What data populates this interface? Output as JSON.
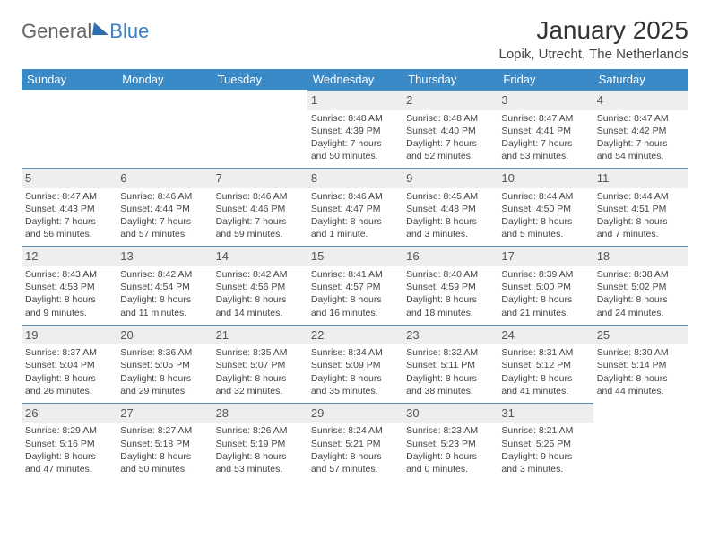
{
  "logo": {
    "part1": "General",
    "part2": "Blue"
  },
  "title": "January 2025",
  "location": "Lopik, Utrecht, The Netherlands",
  "colors": {
    "header_bg": "#3a8ac8",
    "header_text": "#ffffff",
    "daynum_bg": "#eceeef",
    "daynum_border": "#5a8fb8",
    "body_text": "#444444"
  },
  "weekdays": [
    "Sunday",
    "Monday",
    "Tuesday",
    "Wednesday",
    "Thursday",
    "Friday",
    "Saturday"
  ],
  "weeks": [
    [
      {
        "day": "",
        "lines": [
          "",
          "",
          "",
          ""
        ]
      },
      {
        "day": "",
        "lines": [
          "",
          "",
          "",
          ""
        ]
      },
      {
        "day": "",
        "lines": [
          "",
          "",
          "",
          ""
        ]
      },
      {
        "day": "1",
        "lines": [
          "Sunrise: 8:48 AM",
          "Sunset: 4:39 PM",
          "Daylight: 7 hours",
          "and 50 minutes."
        ]
      },
      {
        "day": "2",
        "lines": [
          "Sunrise: 8:48 AM",
          "Sunset: 4:40 PM",
          "Daylight: 7 hours",
          "and 52 minutes."
        ]
      },
      {
        "day": "3",
        "lines": [
          "Sunrise: 8:47 AM",
          "Sunset: 4:41 PM",
          "Daylight: 7 hours",
          "and 53 minutes."
        ]
      },
      {
        "day": "4",
        "lines": [
          "Sunrise: 8:47 AM",
          "Sunset: 4:42 PM",
          "Daylight: 7 hours",
          "and 54 minutes."
        ]
      }
    ],
    [
      {
        "day": "5",
        "lines": [
          "Sunrise: 8:47 AM",
          "Sunset: 4:43 PM",
          "Daylight: 7 hours",
          "and 56 minutes."
        ]
      },
      {
        "day": "6",
        "lines": [
          "Sunrise: 8:46 AM",
          "Sunset: 4:44 PM",
          "Daylight: 7 hours",
          "and 57 minutes."
        ]
      },
      {
        "day": "7",
        "lines": [
          "Sunrise: 8:46 AM",
          "Sunset: 4:46 PM",
          "Daylight: 7 hours",
          "and 59 minutes."
        ]
      },
      {
        "day": "8",
        "lines": [
          "Sunrise: 8:46 AM",
          "Sunset: 4:47 PM",
          "Daylight: 8 hours",
          "and 1 minute."
        ]
      },
      {
        "day": "9",
        "lines": [
          "Sunrise: 8:45 AM",
          "Sunset: 4:48 PM",
          "Daylight: 8 hours",
          "and 3 minutes."
        ]
      },
      {
        "day": "10",
        "lines": [
          "Sunrise: 8:44 AM",
          "Sunset: 4:50 PM",
          "Daylight: 8 hours",
          "and 5 minutes."
        ]
      },
      {
        "day": "11",
        "lines": [
          "Sunrise: 8:44 AM",
          "Sunset: 4:51 PM",
          "Daylight: 8 hours",
          "and 7 minutes."
        ]
      }
    ],
    [
      {
        "day": "12",
        "lines": [
          "Sunrise: 8:43 AM",
          "Sunset: 4:53 PM",
          "Daylight: 8 hours",
          "and 9 minutes."
        ]
      },
      {
        "day": "13",
        "lines": [
          "Sunrise: 8:42 AM",
          "Sunset: 4:54 PM",
          "Daylight: 8 hours",
          "and 11 minutes."
        ]
      },
      {
        "day": "14",
        "lines": [
          "Sunrise: 8:42 AM",
          "Sunset: 4:56 PM",
          "Daylight: 8 hours",
          "and 14 minutes."
        ]
      },
      {
        "day": "15",
        "lines": [
          "Sunrise: 8:41 AM",
          "Sunset: 4:57 PM",
          "Daylight: 8 hours",
          "and 16 minutes."
        ]
      },
      {
        "day": "16",
        "lines": [
          "Sunrise: 8:40 AM",
          "Sunset: 4:59 PM",
          "Daylight: 8 hours",
          "and 18 minutes."
        ]
      },
      {
        "day": "17",
        "lines": [
          "Sunrise: 8:39 AM",
          "Sunset: 5:00 PM",
          "Daylight: 8 hours",
          "and 21 minutes."
        ]
      },
      {
        "day": "18",
        "lines": [
          "Sunrise: 8:38 AM",
          "Sunset: 5:02 PM",
          "Daylight: 8 hours",
          "and 24 minutes."
        ]
      }
    ],
    [
      {
        "day": "19",
        "lines": [
          "Sunrise: 8:37 AM",
          "Sunset: 5:04 PM",
          "Daylight: 8 hours",
          "and 26 minutes."
        ]
      },
      {
        "day": "20",
        "lines": [
          "Sunrise: 8:36 AM",
          "Sunset: 5:05 PM",
          "Daylight: 8 hours",
          "and 29 minutes."
        ]
      },
      {
        "day": "21",
        "lines": [
          "Sunrise: 8:35 AM",
          "Sunset: 5:07 PM",
          "Daylight: 8 hours",
          "and 32 minutes."
        ]
      },
      {
        "day": "22",
        "lines": [
          "Sunrise: 8:34 AM",
          "Sunset: 5:09 PM",
          "Daylight: 8 hours",
          "and 35 minutes."
        ]
      },
      {
        "day": "23",
        "lines": [
          "Sunrise: 8:32 AM",
          "Sunset: 5:11 PM",
          "Daylight: 8 hours",
          "and 38 minutes."
        ]
      },
      {
        "day": "24",
        "lines": [
          "Sunrise: 8:31 AM",
          "Sunset: 5:12 PM",
          "Daylight: 8 hours",
          "and 41 minutes."
        ]
      },
      {
        "day": "25",
        "lines": [
          "Sunrise: 8:30 AM",
          "Sunset: 5:14 PM",
          "Daylight: 8 hours",
          "and 44 minutes."
        ]
      }
    ],
    [
      {
        "day": "26",
        "lines": [
          "Sunrise: 8:29 AM",
          "Sunset: 5:16 PM",
          "Daylight: 8 hours",
          "and 47 minutes."
        ]
      },
      {
        "day": "27",
        "lines": [
          "Sunrise: 8:27 AM",
          "Sunset: 5:18 PM",
          "Daylight: 8 hours",
          "and 50 minutes."
        ]
      },
      {
        "day": "28",
        "lines": [
          "Sunrise: 8:26 AM",
          "Sunset: 5:19 PM",
          "Daylight: 8 hours",
          "and 53 minutes."
        ]
      },
      {
        "day": "29",
        "lines": [
          "Sunrise: 8:24 AM",
          "Sunset: 5:21 PM",
          "Daylight: 8 hours",
          "and 57 minutes."
        ]
      },
      {
        "day": "30",
        "lines": [
          "Sunrise: 8:23 AM",
          "Sunset: 5:23 PM",
          "Daylight: 9 hours",
          "and 0 minutes."
        ]
      },
      {
        "day": "31",
        "lines": [
          "Sunrise: 8:21 AM",
          "Sunset: 5:25 PM",
          "Daylight: 9 hours",
          "and 3 minutes."
        ]
      },
      {
        "day": "",
        "lines": [
          "",
          "",
          "",
          ""
        ]
      }
    ]
  ]
}
